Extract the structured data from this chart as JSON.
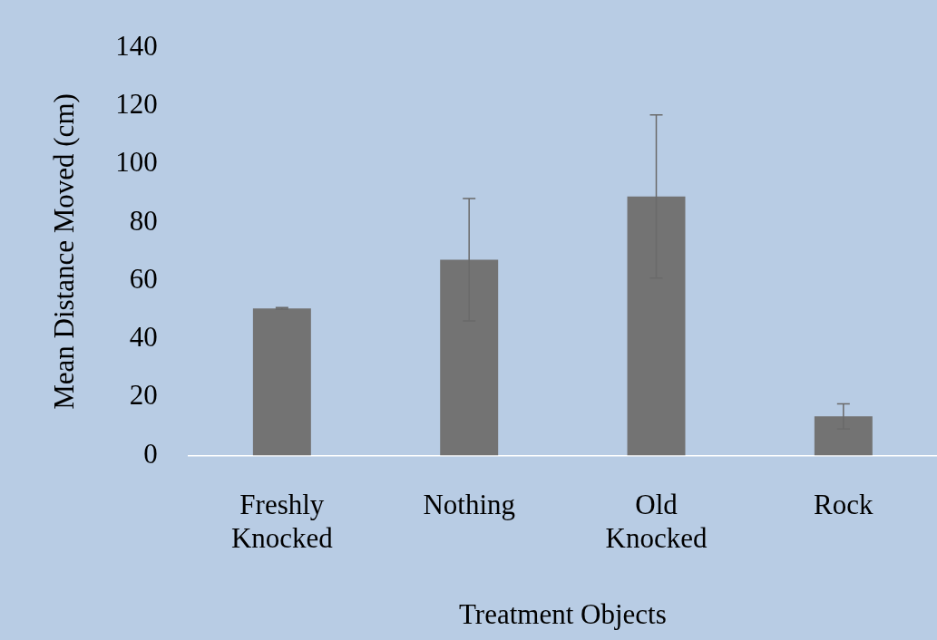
{
  "chart_data": {
    "type": "bar",
    "xlabel": "Treatment Objects",
    "ylabel": "Mean Distance Moved (cm)",
    "categories": [
      "Freshly Knocked",
      "Nothing",
      "Old Knocked",
      "Rock"
    ],
    "values": [
      50.5,
      67.2,
      88.9,
      13.4
    ],
    "errors": [
      0.3,
      21,
      28,
      4.3
    ],
    "color": "#737373",
    "ylim": [
      0,
      140
    ],
    "yticks": [
      0,
      20,
      40,
      60,
      80,
      100,
      120,
      140
    ],
    "grid": false,
    "legend": false
  }
}
